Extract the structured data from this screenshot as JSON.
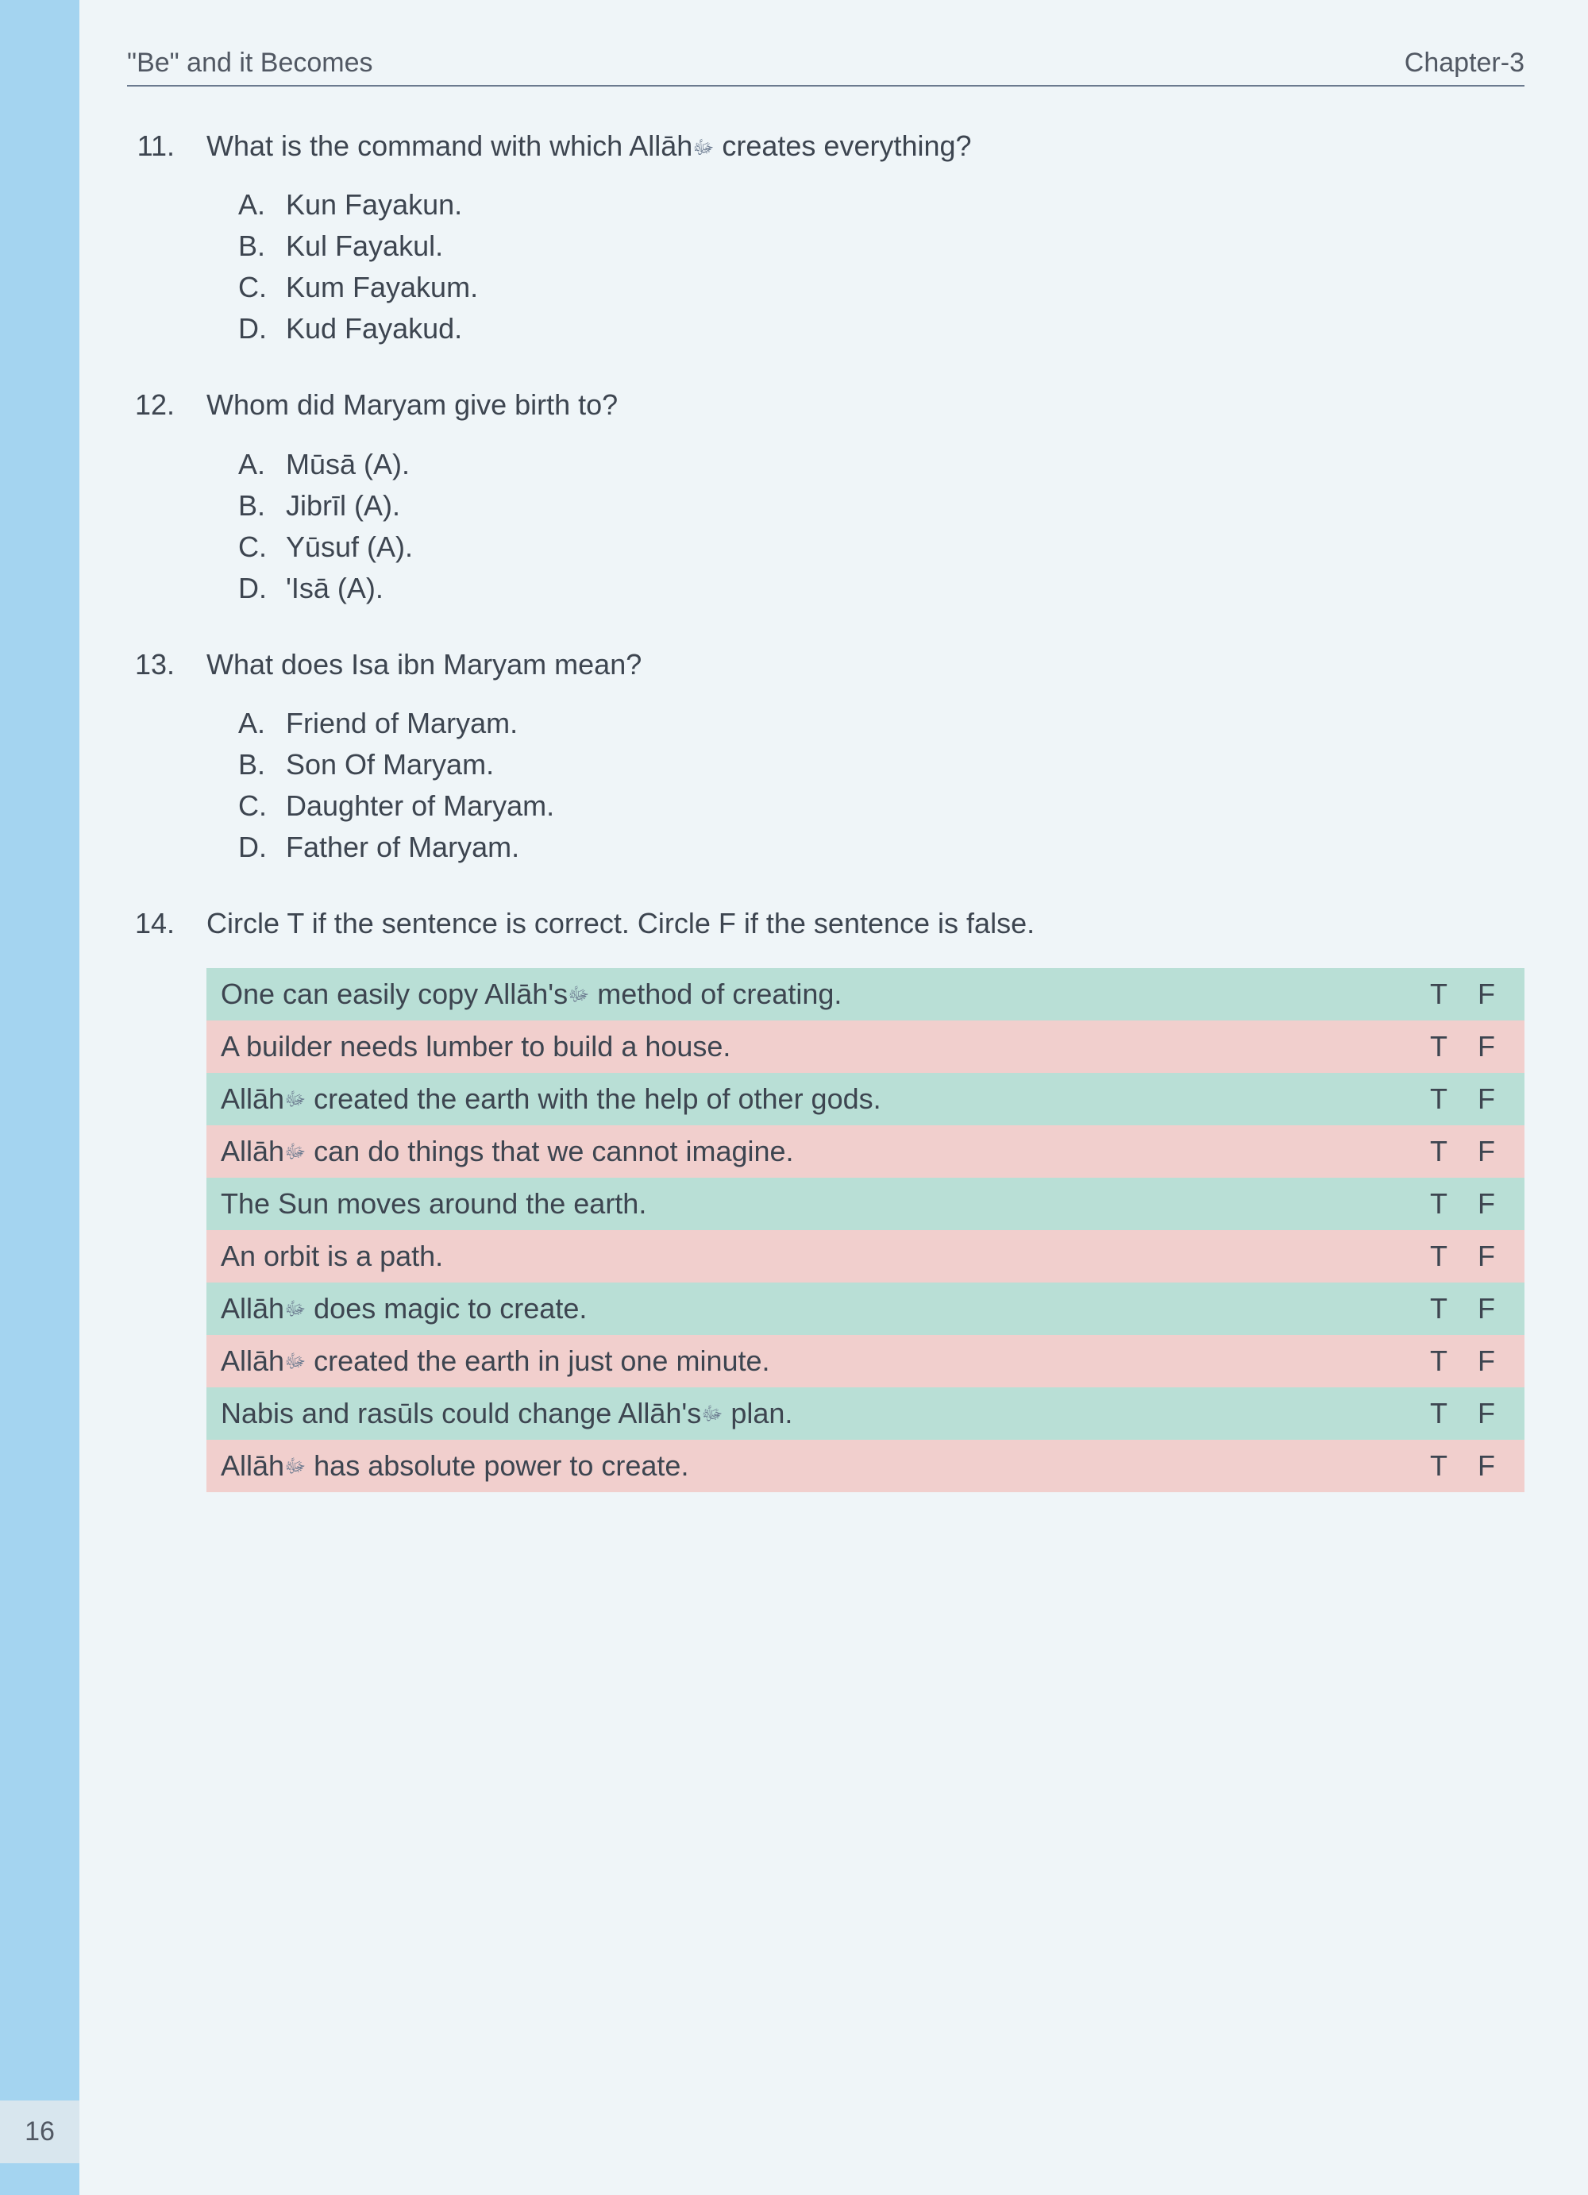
{
  "header": {
    "left": "\"Be\" and it Becomes",
    "right": "Chapter-3"
  },
  "page_number": "16",
  "questions": [
    {
      "number": "11.",
      "text_parts": [
        "What is the command with which Allāh",
        "ﷻ",
        " creates everything?"
      ],
      "options": [
        {
          "letter": "A.",
          "text": "Kun Fayakun."
        },
        {
          "letter": "B.",
          "text": "Kul Fayakul."
        },
        {
          "letter": "C.",
          "text": "Kum Fayakum."
        },
        {
          "letter": "D.",
          "text": "Kud Fayakud."
        }
      ]
    },
    {
      "number": "12.",
      "text_parts": [
        "Whom did Maryam give birth to?"
      ],
      "options": [
        {
          "letter": "A.",
          "text": "Mūsā (A)."
        },
        {
          "letter": "B.",
          "text": "Jibrīl (A)."
        },
        {
          "letter": "C.",
          "text": "Yūsuf (A)."
        },
        {
          "letter": "D.",
          "text": "'Isā (A)."
        }
      ]
    },
    {
      "number": "13.",
      "text_parts": [
        "What does Isa ibn Maryam mean?"
      ],
      "options": [
        {
          "letter": "A.",
          "text": "Friend of Maryam."
        },
        {
          "letter": "B.",
          "text": "Son Of Maryam."
        },
        {
          "letter": "C.",
          "text": "Daughter of Maryam."
        },
        {
          "letter": "D.",
          "text": "Father of Maryam."
        }
      ]
    }
  ],
  "tf_question": {
    "number": "14.",
    "text": "Circle T if the sentence is correct. Circle F if the sentence is false.",
    "t_label": "T",
    "f_label": "F",
    "rows": [
      {
        "statement_parts": [
          "One can easily copy Allāh's",
          "ﷻ",
          " method of creating."
        ],
        "color": "green"
      },
      {
        "statement_parts": [
          "A builder needs lumber to build a house."
        ],
        "color": "pink"
      },
      {
        "statement_parts": [
          "Allāh",
          "ﷻ",
          " created the earth with the help of other gods."
        ],
        "color": "green"
      },
      {
        "statement_parts": [
          "Allāh",
          "ﷻ",
          " can do things that we cannot imagine."
        ],
        "color": "pink"
      },
      {
        "statement_parts": [
          "The Sun moves around the earth."
        ],
        "color": "green"
      },
      {
        "statement_parts": [
          "An orbit is a path."
        ],
        "color": "pink"
      },
      {
        "statement_parts": [
          "Allāh",
          "ﷻ",
          " does magic to create."
        ],
        "color": "green"
      },
      {
        "statement_parts": [
          "Allāh",
          "ﷻ",
          " created the earth in just one minute."
        ],
        "color": "pink"
      },
      {
        "statement_parts": [
          "Nabis and rasūls could change Allāh's",
          "ﷻ",
          " plan."
        ],
        "color": "green"
      },
      {
        "statement_parts": [
          "Allāh",
          "ﷻ",
          " has absolute power to create."
        ],
        "color": "pink"
      }
    ]
  },
  "colors": {
    "green": "#b9dfd6",
    "pink": "#f1cfcd",
    "sidebar": "#a4d4f0",
    "page_bg": "#eff5f8",
    "text": "#3d4550"
  }
}
